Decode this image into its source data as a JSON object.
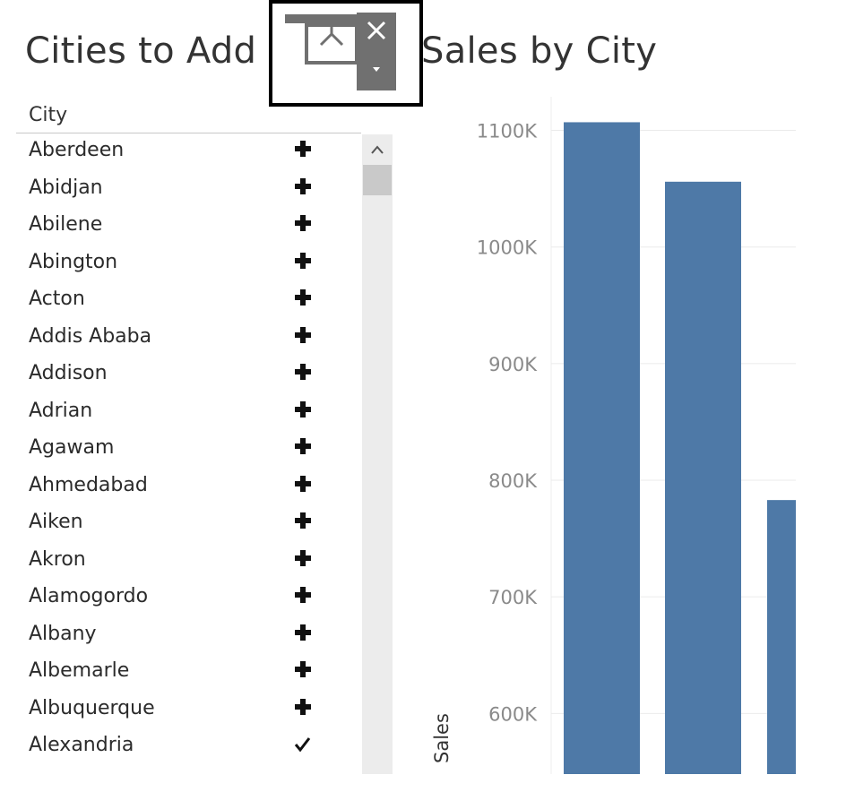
{
  "left_panel": {
    "title": "Cities to Add",
    "column_header": "City",
    "cities": [
      {
        "name": "Aberdeen",
        "status": "add"
      },
      {
        "name": "Abidjan",
        "status": "add"
      },
      {
        "name": "Abilene",
        "status": "add"
      },
      {
        "name": "Abington",
        "status": "add"
      },
      {
        "name": "Acton",
        "status": "add"
      },
      {
        "name": "Addis Ababa",
        "status": "add"
      },
      {
        "name": "Addison",
        "status": "add"
      },
      {
        "name": "Adrian",
        "status": "add"
      },
      {
        "name": "Agawam",
        "status": "add"
      },
      {
        "name": "Ahmedabad",
        "status": "add"
      },
      {
        "name": "Aiken",
        "status": "add"
      },
      {
        "name": "Akron",
        "status": "add"
      },
      {
        "name": "Alamogordo",
        "status": "add"
      },
      {
        "name": "Albany",
        "status": "add"
      },
      {
        "name": "Albemarle",
        "status": "add"
      },
      {
        "name": "Albuquerque",
        "status": "add"
      },
      {
        "name": "Alexandria",
        "status": "added"
      }
    ]
  },
  "icons": {
    "add": "plus-icon",
    "added": "check-icon",
    "scroll_up": "chevron-up-icon",
    "overlay_close": "close-icon",
    "overlay_dropdown": "caret-down-icon",
    "overlay_presentation": "presentation-icon"
  },
  "colors": {
    "bar": "#4e79a7",
    "text": "#333333",
    "axis_text": "#8a8a8a",
    "overlay_panel": "#707070",
    "scrollbar_track": "#ececec",
    "scrollbar_thumb": "#c9c9c9"
  },
  "chart_data": {
    "type": "bar",
    "title": "Sales by City",
    "ylabel": "Sales",
    "categories": [
      "",
      "",
      ""
    ],
    "values": [
      1107000,
      1056000,
      783000
    ],
    "ylim": [
      548000,
      1135000
    ],
    "yticks": [
      600000,
      700000,
      800000,
      900000,
      1000000,
      1100000
    ],
    "ytick_labels": [
      "600K",
      "700K",
      "800K",
      "900K",
      "1000K",
      "1100K"
    ],
    "grid": true
  }
}
